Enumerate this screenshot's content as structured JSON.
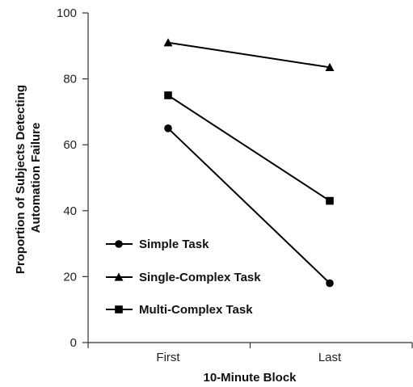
{
  "chart_data": {
    "type": "line",
    "title": "",
    "xlabel": "10-Minute Block",
    "ylabel": [
      "Proportion of Subjects Detecting",
      "Automation Failure"
    ],
    "categories": [
      "First",
      "Last"
    ],
    "ylim": [
      0,
      100
    ],
    "yticks": [
      0,
      20,
      40,
      60,
      80,
      100
    ],
    "grid": false,
    "legend_position": "lower-left",
    "series": [
      {
        "name": "Simple Task",
        "marker": "circle",
        "values": [
          65,
          18
        ]
      },
      {
        "name": "Single-Complex Task",
        "marker": "triangle",
        "values": [
          91,
          83.5
        ]
      },
      {
        "name": "Multi-Complex Task",
        "marker": "square",
        "values": [
          75,
          43
        ]
      }
    ]
  },
  "colors": {
    "line": "#000000",
    "axis": "#333333"
  }
}
